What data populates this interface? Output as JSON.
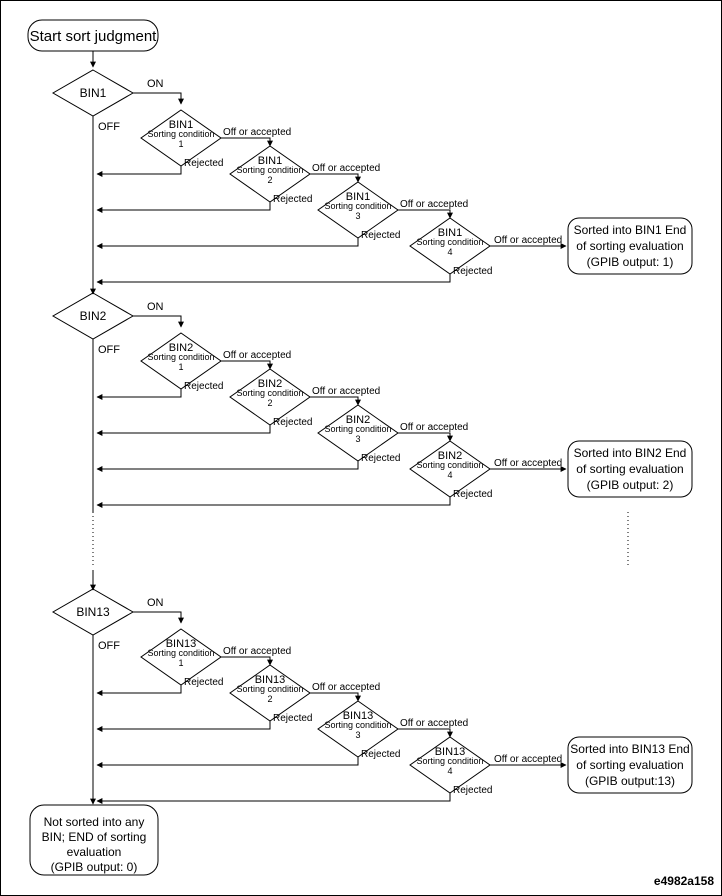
{
  "start": {
    "label": "Start sort judgment"
  },
  "labels": {
    "on": "ON",
    "off": "OFF",
    "accepted": "Off or accepted",
    "rejected": "Rejected",
    "condition": "Sorting condition"
  },
  "bins": [
    {
      "name": "BIN1",
      "result": [
        "Sorted into BIN1 End",
        "of sorting evaluation",
        "(GPIB output: 1)"
      ]
    },
    {
      "name": "BIN2",
      "result": [
        "Sorted into BIN2 End",
        "of sorting evaluation",
        "(GPIB output: 2)"
      ]
    },
    {
      "name": "BIN13",
      "result": [
        "Sorted into BIN13 End",
        "of sorting evaluation",
        "(GPIB output:13)"
      ]
    }
  ],
  "conditions": [
    "1",
    "2",
    "3",
    "4"
  ],
  "end": {
    "lines": [
      "Not sorted into any",
      "BIN; END of sorting",
      "evaluation",
      "(GPIB output: 0)"
    ]
  },
  "figure_id": "e4982a158"
}
